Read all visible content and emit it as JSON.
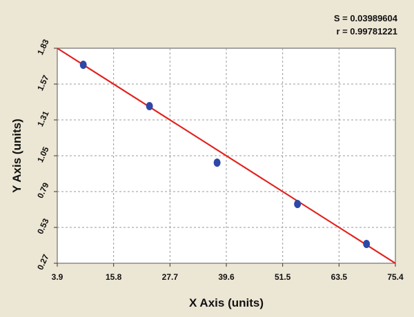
{
  "stats": {
    "s_label": "S = 0.03989604",
    "r_label": "r = 0.99781221"
  },
  "colors": {
    "background": "#ece6d4",
    "plot_area": "#ffffff",
    "grid": "#9a9a9a",
    "fit_line": "#e3211c",
    "points": "#2d48a8"
  },
  "chart_data": {
    "type": "scatter",
    "xlabel": "X Axis (units)",
    "ylabel": "Y Axis (units)",
    "xlim": [
      3.9,
      75.4
    ],
    "ylim": [
      0.27,
      1.83
    ],
    "x_ticks": [
      "3.9",
      "15.8",
      "27.7",
      "39.6",
      "51.5",
      "63.5",
      "75.4"
    ],
    "y_ticks": [
      "0.27",
      "0.53",
      "0.79",
      "1.05",
      "1.31",
      "1.57",
      "1.83"
    ],
    "grid": true,
    "series": [
      {
        "points": [
          {
            "x": 9.4,
            "y": 1.71
          },
          {
            "x": 23.4,
            "y": 1.41
          },
          {
            "x": 37.7,
            "y": 1.0
          },
          {
            "x": 54.7,
            "y": 0.7
          },
          {
            "x": 69.3,
            "y": 0.41
          }
        ]
      }
    ],
    "fit_line": {
      "x": [
        3.9,
        75.4
      ],
      "y": [
        1.83,
        0.27
      ]
    }
  }
}
